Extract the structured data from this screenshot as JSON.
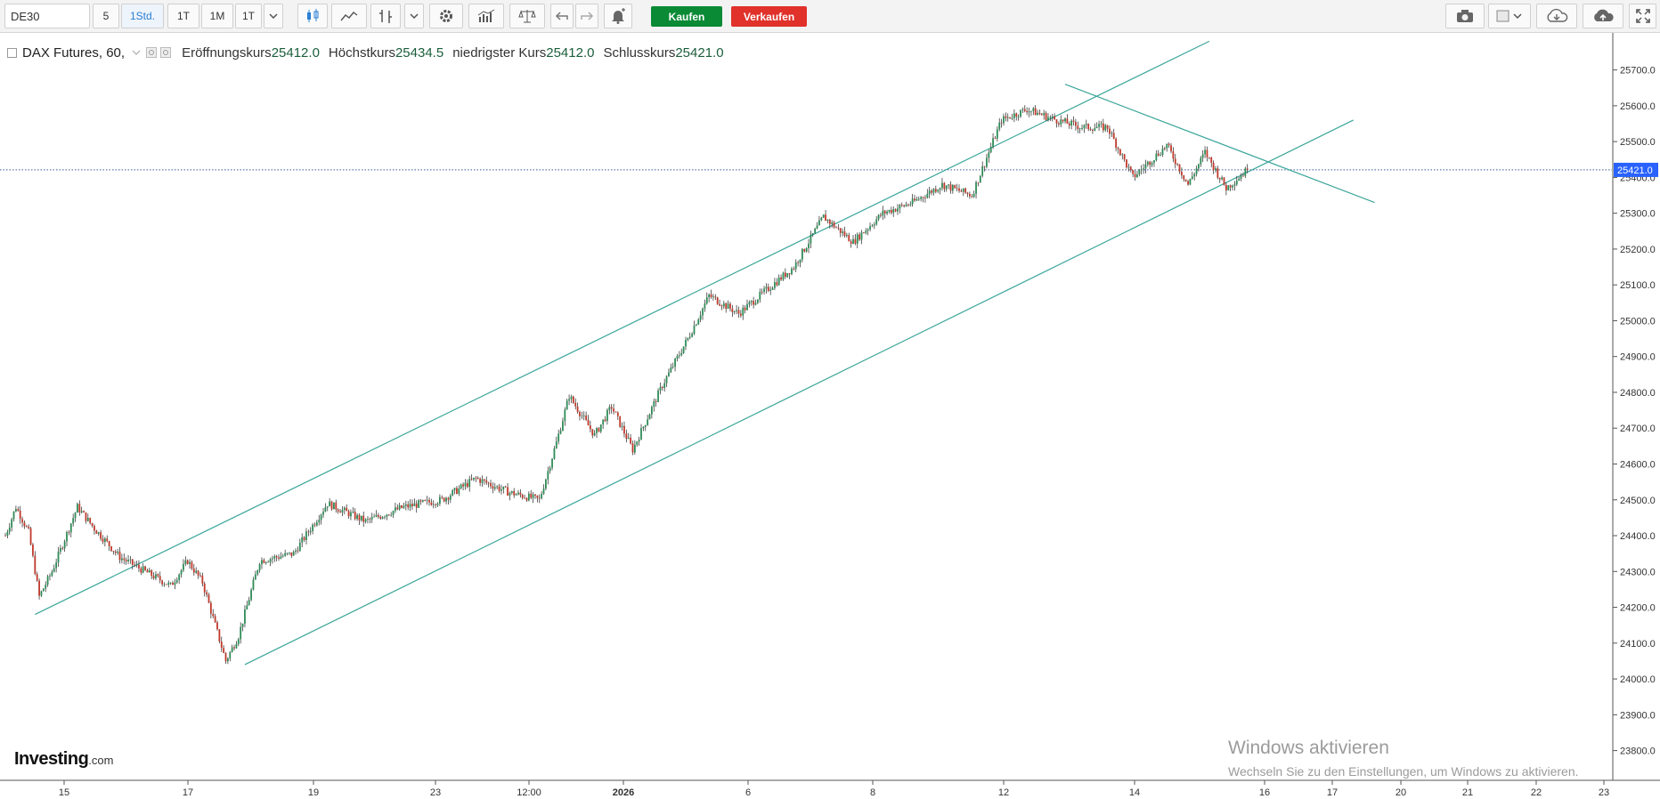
{
  "toolbar": {
    "symbol": "DE30",
    "intervals": [
      "5",
      "1Std.",
      "1T",
      "1M",
      "1T"
    ],
    "active_interval": "1Std.",
    "buy_label": "Kaufen",
    "sell_label": "Verkaufen",
    "colors": {
      "buy": "#0a8a35",
      "sell": "#e0312a",
      "active": "#2a7fd4"
    },
    "icons": [
      "chevron-down-icon",
      "candlestick-icon",
      "line-chart-icon",
      "draw-tools-icon",
      "chevron-down-icon",
      "settings-gear-icon",
      "indicators-icon",
      "compare-scale-icon",
      "undo-icon",
      "redo-icon",
      "alert-bell-icon",
      "camera-icon",
      "color-box-icon",
      "chevron-down-icon",
      "cloud-download-icon",
      "cloud-upload-icon",
      "fullscreen-icon"
    ]
  },
  "legend": {
    "instrument": "DAX Futures, 60,",
    "open_label": "Eröffnungskurs",
    "open_value": "25412.0",
    "high_label": "Höchstkurs",
    "high_value": "25434.5",
    "low_label": "niedrigster Kurs",
    "low_value": "25412.0",
    "close_label": "Schlusskurs",
    "close_value": "25421.0"
  },
  "branding": {
    "logo": "Investing",
    "logo_suffix": ".com"
  },
  "watermark": {
    "line1": "Windows aktivieren",
    "line2": "Wechseln Sie zu den Einstellungen, um Windows zu aktivieren."
  },
  "chart_data": {
    "type": "candlestick",
    "ylim": [
      23750,
      25800
    ],
    "y_ticks": [
      23800,
      23900,
      24000,
      24100,
      24200,
      24300,
      24400,
      24500,
      24600,
      24700,
      24800,
      24900,
      25000,
      25100,
      25200,
      25300,
      25400,
      25500,
      25600,
      25700
    ],
    "y_tick_labels": [
      "23800.0",
      "23900.0",
      "24000.0",
      "24100.0",
      "24200.0",
      "24300.0",
      "24400.0",
      "24500.0",
      "24600.0",
      "24700.0",
      "24800.0",
      "24900.0",
      "25000.0",
      "25100.0",
      "25200.0",
      "25300.0",
      "25400.0",
      "25500.0",
      "25600.0",
      "25700.0"
    ],
    "x_tick_labels": [
      "15",
      "17",
      "19",
      "23",
      "12:00",
      "2026",
      "6",
      "8",
      "12",
      "14",
      "16",
      "17",
      "20",
      "21",
      "22",
      "23"
    ],
    "bold_x_labels": [
      "2026"
    ],
    "last_price": 25421.0,
    "last_price_label": "25421.0",
    "colors": {
      "up": "#2e8b57",
      "down": "#c0392b",
      "trendline": "#3aa69a",
      "price_label": "#2962ff"
    },
    "path_points": [
      {
        "i": 0,
        "price": 24400
      },
      {
        "i": 5,
        "price": 24480
      },
      {
        "i": 11,
        "price": 24410
      },
      {
        "i": 16,
        "price": 24230
      },
      {
        "i": 22,
        "price": 24300
      },
      {
        "i": 34,
        "price": 24480
      },
      {
        "i": 42,
        "price": 24420
      },
      {
        "i": 54,
        "price": 24340
      },
      {
        "i": 66,
        "price": 24300
      },
      {
        "i": 78,
        "price": 24260
      },
      {
        "i": 86,
        "price": 24330
      },
      {
        "i": 93,
        "price": 24270
      },
      {
        "i": 104,
        "price": 24050
      },
      {
        "i": 110,
        "price": 24120
      },
      {
        "i": 120,
        "price": 24330
      },
      {
        "i": 136,
        "price": 24350
      },
      {
        "i": 152,
        "price": 24490
      },
      {
        "i": 170,
        "price": 24440
      },
      {
        "i": 188,
        "price": 24480
      },
      {
        "i": 206,
        "price": 24500
      },
      {
        "i": 222,
        "price": 24560
      },
      {
        "i": 238,
        "price": 24520
      },
      {
        "i": 252,
        "price": 24500
      },
      {
        "i": 260,
        "price": 24660
      },
      {
        "i": 266,
        "price": 24790
      },
      {
        "i": 278,
        "price": 24680
      },
      {
        "i": 286,
        "price": 24760
      },
      {
        "i": 296,
        "price": 24640
      },
      {
        "i": 310,
        "price": 24820
      },
      {
        "i": 322,
        "price": 24950
      },
      {
        "i": 332,
        "price": 25070
      },
      {
        "i": 346,
        "price": 25020
      },
      {
        "i": 358,
        "price": 25080
      },
      {
        "i": 372,
        "price": 25150
      },
      {
        "i": 386,
        "price": 25290
      },
      {
        "i": 400,
        "price": 25220
      },
      {
        "i": 414,
        "price": 25300
      },
      {
        "i": 428,
        "price": 25330
      },
      {
        "i": 442,
        "price": 25380
      },
      {
        "i": 456,
        "price": 25350
      },
      {
        "i": 470,
        "price": 25560
      },
      {
        "i": 482,
        "price": 25590
      },
      {
        "i": 496,
        "price": 25560
      },
      {
        "i": 508,
        "price": 25540
      },
      {
        "i": 520,
        "price": 25540
      },
      {
        "i": 532,
        "price": 25400
      },
      {
        "i": 548,
        "price": 25490
      },
      {
        "i": 558,
        "price": 25380
      },
      {
        "i": 566,
        "price": 25470
      },
      {
        "i": 576,
        "price": 25370
      },
      {
        "i": 586,
        "price": 25421
      }
    ],
    "trendlines": [
      {
        "from": {
          "i": 14,
          "price": 24180
        },
        "to": {
          "i": 568,
          "price": 25780
        }
      },
      {
        "from": {
          "i": 113,
          "price": 24040
        },
        "to": {
          "i": 636,
          "price": 25560
        }
      },
      {
        "from": {
          "i": 500,
          "price": 25660
        },
        "to": {
          "i": 646,
          "price": 25330
        }
      }
    ]
  }
}
